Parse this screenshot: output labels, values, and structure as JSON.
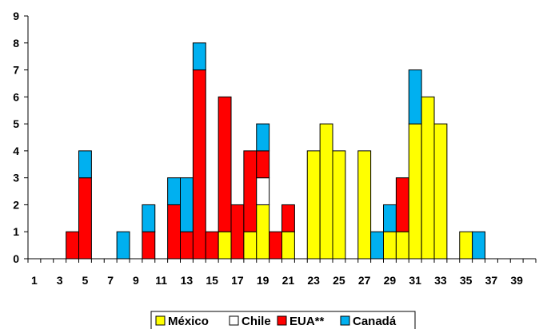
{
  "chart_data": {
    "type": "bar",
    "stacked": true,
    "x": [
      1,
      2,
      3,
      4,
      5,
      6,
      7,
      8,
      9,
      10,
      11,
      12,
      13,
      14,
      15,
      16,
      17,
      18,
      19,
      20,
      21,
      22,
      23,
      24,
      25,
      26,
      27,
      28,
      29,
      30,
      31,
      32,
      33,
      34,
      35,
      36,
      37,
      38,
      39,
      40
    ],
    "x_tick_labels": [
      "1",
      "3",
      "5",
      "7",
      "9",
      "11",
      "13",
      "15",
      "17",
      "19",
      "21",
      "23",
      "25",
      "27",
      "29",
      "31",
      "33",
      "35",
      "37",
      "39"
    ],
    "y_tick_labels": [
      "0",
      "1",
      "2",
      "3",
      "4",
      "5",
      "6",
      "7",
      "8",
      "9"
    ],
    "ylim": [
      0,
      9
    ],
    "grid": false,
    "legend_position": "bottom",
    "series": [
      {
        "name": "México",
        "color": "#ffff00",
        "values": [
          0,
          0,
          0,
          0,
          0,
          0,
          0,
          0,
          0,
          0,
          0,
          0,
          0,
          0,
          0,
          1,
          0,
          1,
          2,
          0,
          1,
          0,
          4,
          5,
          4,
          0,
          4,
          0,
          1,
          1,
          5,
          6,
          5,
          0,
          1,
          0,
          0,
          0,
          0,
          0
        ]
      },
      {
        "name": "Chile",
        "color": "#ffffff",
        "values": [
          0,
          0,
          0,
          0,
          0,
          0,
          0,
          0,
          0,
          0,
          0,
          0,
          0,
          0,
          0,
          0,
          0,
          0,
          1,
          0,
          0,
          0,
          0,
          0,
          0,
          0,
          0,
          0,
          0,
          0,
          0,
          0,
          0,
          0,
          0,
          0,
          0,
          0,
          0,
          0
        ]
      },
      {
        "name": "EUA**",
        "color": "#ff0000",
        "values": [
          0,
          0,
          0,
          1,
          3,
          0,
          0,
          0,
          0,
          1,
          0,
          2,
          1,
          7,
          1,
          5,
          2,
          3,
          1,
          1,
          1,
          0,
          0,
          0,
          0,
          0,
          0,
          0,
          0,
          2,
          0,
          0,
          0,
          0,
          0,
          0,
          0,
          0,
          0,
          0
        ]
      },
      {
        "name": "Canadá",
        "color": "#00b0f0",
        "values": [
          0,
          0,
          0,
          0,
          1,
          0,
          0,
          1,
          0,
          1,
          0,
          1,
          2,
          1,
          0,
          0,
          0,
          0,
          1,
          0,
          0,
          0,
          0,
          0,
          0,
          0,
          0,
          1,
          1,
          0,
          2,
          0,
          0,
          0,
          0,
          1,
          0,
          0,
          0,
          0
        ]
      }
    ]
  }
}
